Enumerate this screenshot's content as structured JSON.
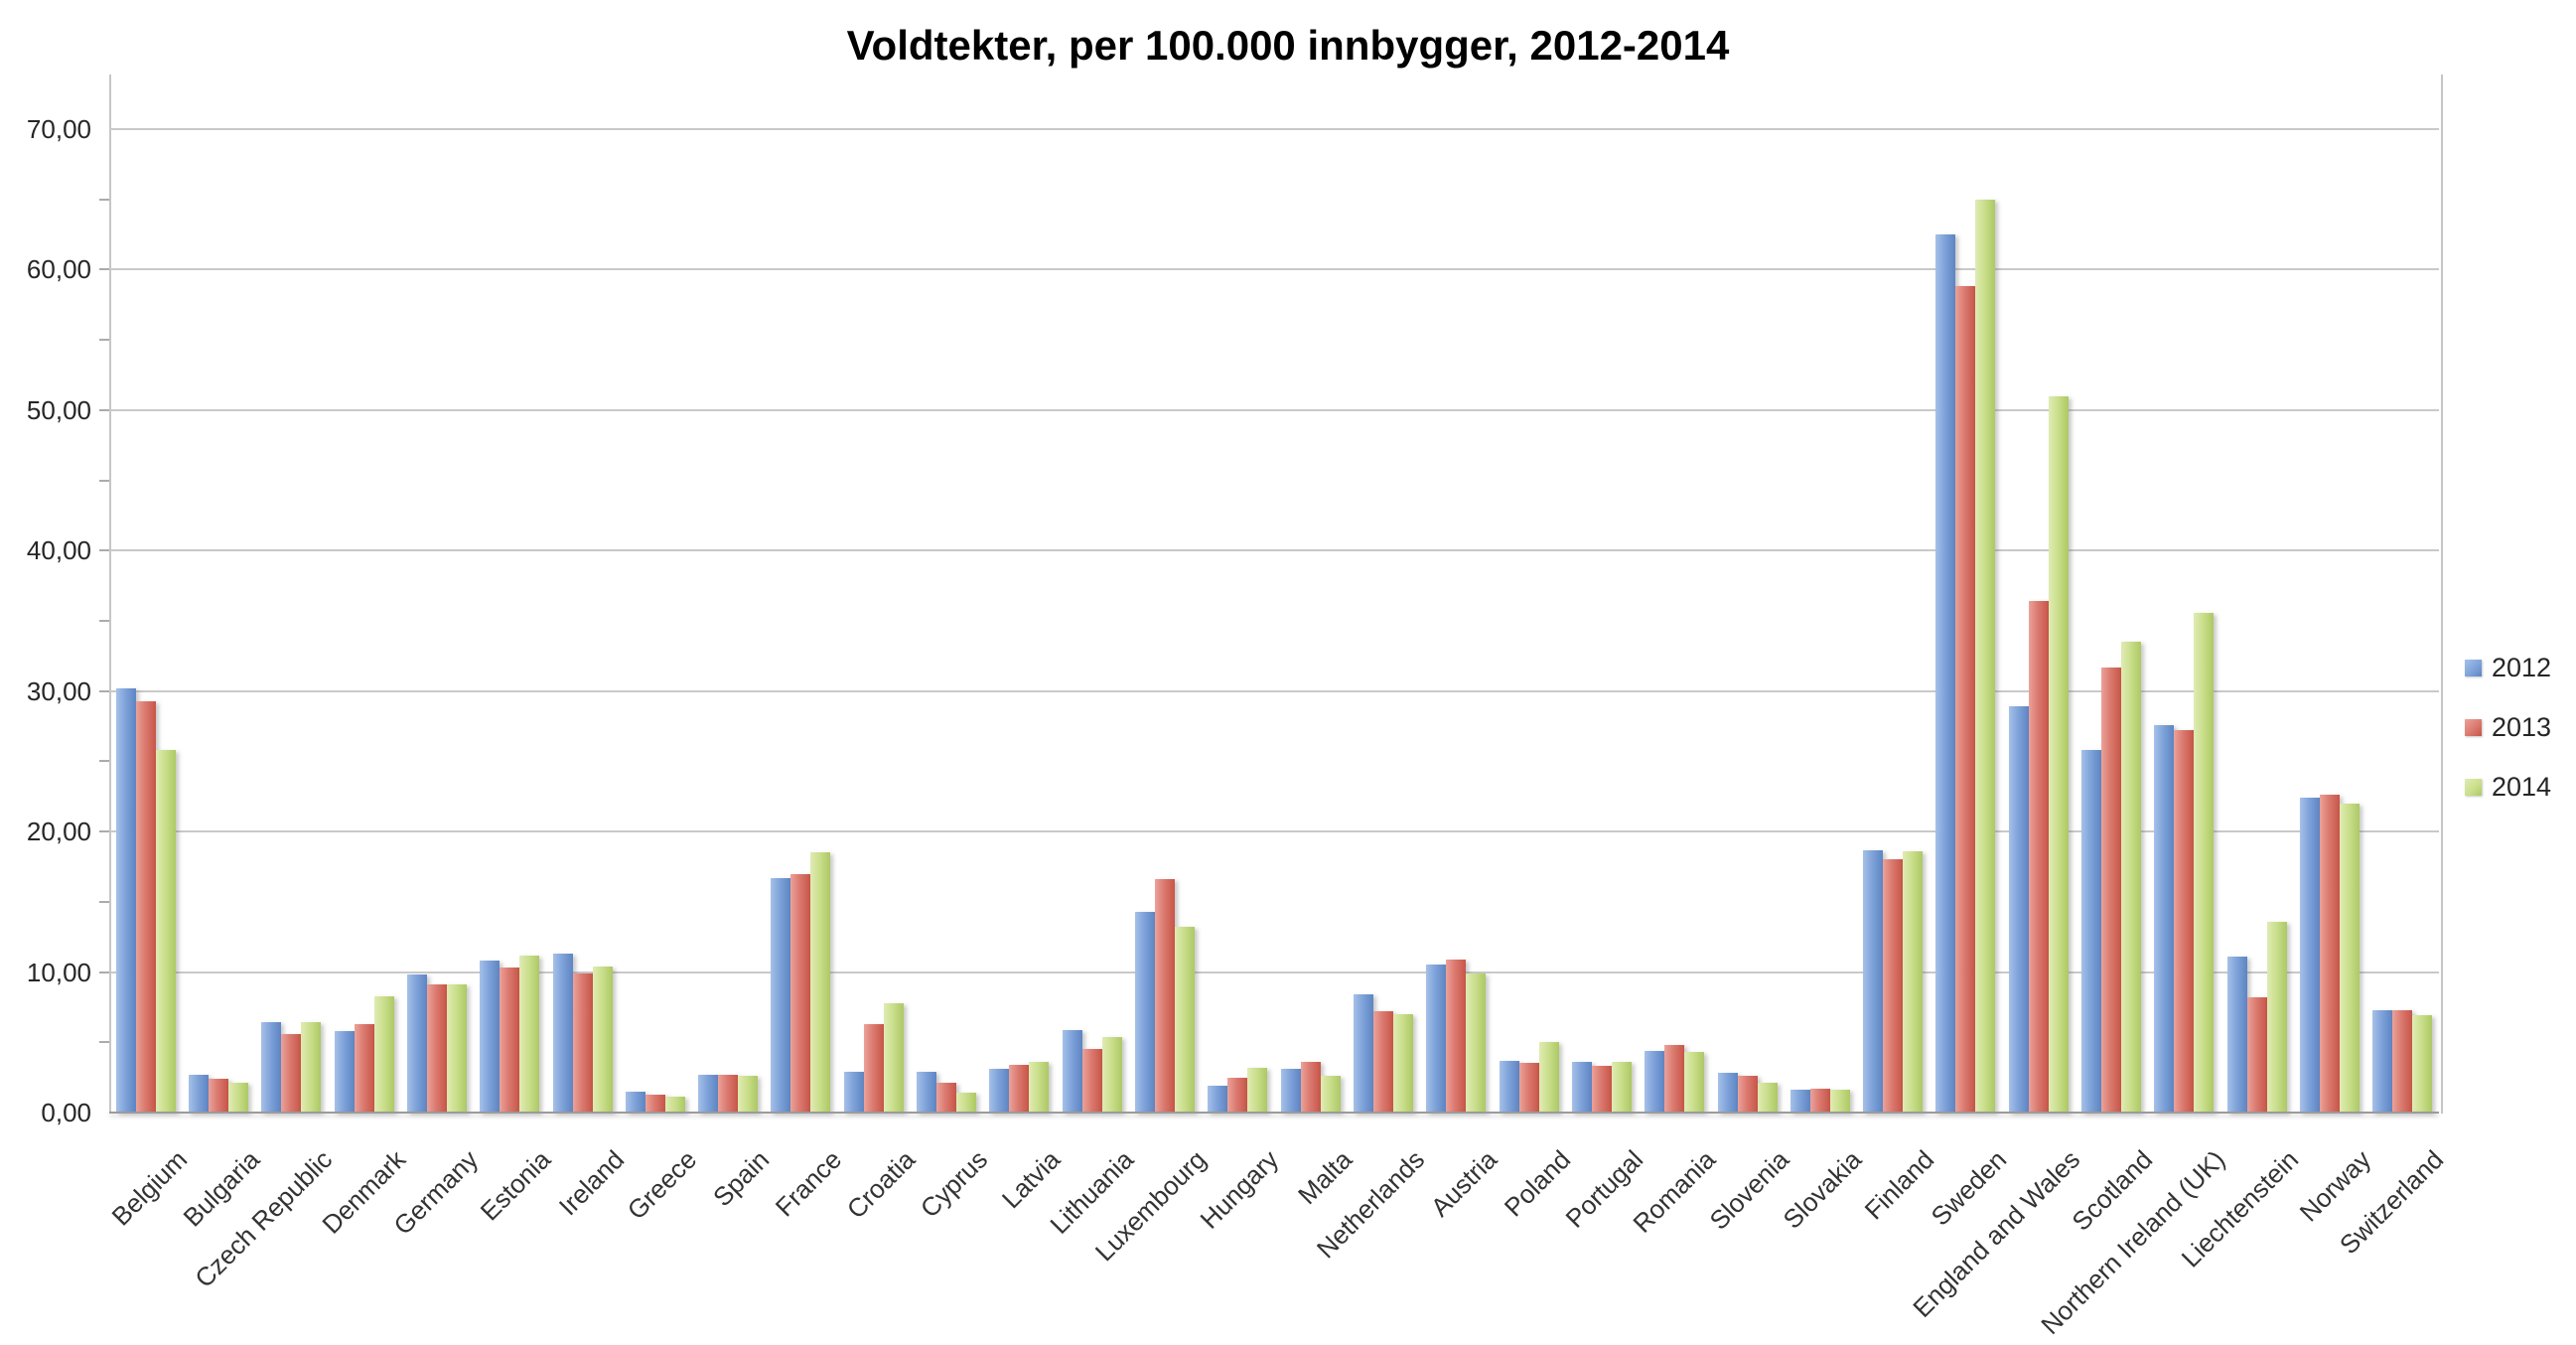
{
  "title": "Voldtekter, per 100.000 innbygger, 2012-2014",
  "y_axis": {
    "tick_labels": [
      "70,00",
      "60,00",
      "50,00",
      "40,00",
      "30,00",
      "20,00",
      "10,00",
      "0,00"
    ],
    "tick_values": [
      70,
      60,
      50,
      40,
      30,
      20,
      10,
      0
    ]
  },
  "legend": {
    "items": [
      {
        "label": "2012",
        "color_light": "#A6C1E8",
        "color_mid": "#7FA3DA",
        "color_dark": "#5E85C3"
      },
      {
        "label": "2013",
        "color_light": "#EBA29A",
        "color_mid": "#DB7A70",
        "color_dark": "#C75548"
      },
      {
        "label": "2014",
        "color_light": "#E0EBB4",
        "color_mid": "#CBDF8D",
        "color_dark": "#ADC964"
      }
    ]
  },
  "chart_data": {
    "type": "bar",
    "title": "Voldtekter, per 100.000 innbygger, 2012-2014",
    "xlabel": "",
    "ylabel": "",
    "ylim": [
      0,
      70
    ],
    "grid": true,
    "legend_position": "right",
    "decimal_separator": ",",
    "categories": [
      "Belgium",
      "Bulgaria",
      "Czech Republic",
      "Denmark",
      "Germany",
      "Estonia",
      "Ireland",
      "Greece",
      "Spain",
      "France",
      "Croatia",
      "Cyprus",
      "Latvia",
      "Lithuania",
      "Luxembourg",
      "Hungary",
      "Malta",
      "Netherlands",
      "Austria",
      "Poland",
      "Portugal",
      "Romania",
      "Slovenia",
      "Slovakia",
      "Finland",
      "Sweden",
      "England and Wales",
      "Scotland",
      "Northern Ireland (UK)",
      "Liechtenstein",
      "Norway",
      "Switzerland"
    ],
    "series": [
      {
        "name": "2012",
        "values": [
          30.2,
          2.7,
          6.4,
          5.8,
          9.8,
          10.8,
          11.3,
          1.5,
          2.7,
          16.7,
          2.9,
          2.9,
          3.1,
          5.9,
          14.3,
          1.9,
          3.1,
          8.4,
          10.5,
          3.7,
          3.6,
          4.4,
          2.8,
          1.6,
          18.7,
          62.5,
          28.9,
          25.8,
          27.6,
          11.1,
          22.4,
          7.3
        ]
      },
      {
        "name": "2013",
        "values": [
          29.3,
          2.4,
          5.6,
          6.3,
          9.1,
          10.3,
          9.9,
          1.3,
          2.7,
          17.0,
          6.3,
          2.1,
          3.4,
          4.5,
          16.6,
          2.5,
          3.6,
          7.2,
          10.9,
          3.5,
          3.3,
          4.8,
          2.6,
          1.7,
          18.0,
          58.8,
          36.4,
          31.7,
          27.2,
          8.2,
          22.6,
          7.3
        ]
      },
      {
        "name": "2014",
        "values": [
          25.8,
          2.1,
          6.4,
          8.3,
          9.1,
          11.2,
          10.4,
          1.1,
          2.6,
          18.5,
          7.8,
          1.4,
          3.6,
          5.4,
          13.2,
          3.2,
          2.6,
          7.0,
          9.9,
          5.0,
          3.6,
          4.3,
          2.1,
          1.6,
          18.6,
          65.0,
          51.0,
          33.5,
          35.6,
          13.6,
          22.0,
          6.9
        ]
      }
    ]
  }
}
